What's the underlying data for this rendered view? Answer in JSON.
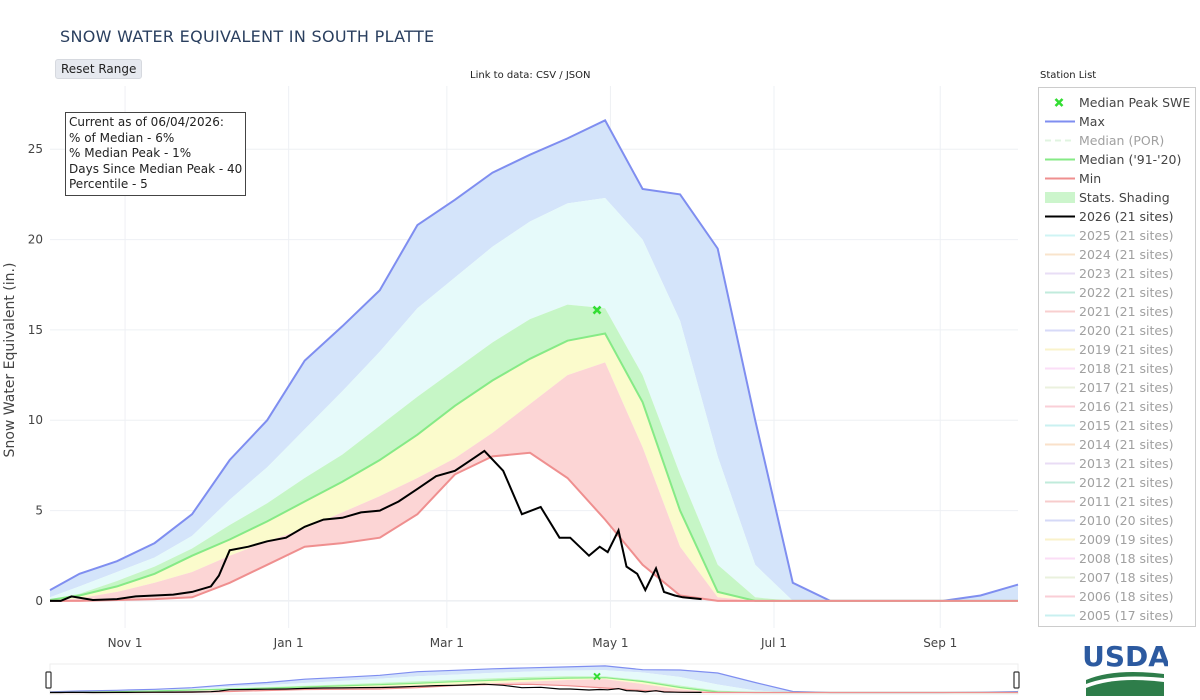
{
  "page": {
    "title": "SNOW WATER EQUIVALENT IN SOUTH PLATTE",
    "reset_button": "Reset Range",
    "data_link_prefix": "Link to data: ",
    "data_link_csv": "CSV",
    "data_link_sep": " / ",
    "data_link_json": "JSON",
    "station_list": "Station List",
    "usda_logo_text": "USDA"
  },
  "info_box": {
    "lines": [
      "Current as of 06/04/2026:",
      "% of Median - 6%",
      "% Median Peak - 1%",
      "Days Since Median Peak - 40",
      "Percentile - 5"
    ]
  },
  "legend": {
    "items": [
      {
        "label": "Median Peak SWE",
        "kind": "marker",
        "color": "#33dd33",
        "active": true
      },
      {
        "label": "Max",
        "kind": "line",
        "color": "#7f8ef0",
        "active": true
      },
      {
        "label": "Median (POR)",
        "kind": "dash",
        "color": "#c8ecc8",
        "active": false
      },
      {
        "label": "Median ('91-'20)",
        "kind": "line",
        "color": "#86ea86",
        "active": true
      },
      {
        "label": "Min",
        "kind": "line",
        "color": "#ef8f8f",
        "active": true
      },
      {
        "label": "Stats. Shading",
        "kind": "band",
        "color": "#ccf5cc",
        "active": true
      },
      {
        "label": "2026 (21 sites)",
        "kind": "line",
        "color": "#000000",
        "active": true
      },
      {
        "label": "2025 (21 sites)",
        "kind": "line",
        "color": "#a9ecec",
        "active": false
      },
      {
        "label": "2024 (21 sites)",
        "kind": "line",
        "color": "#f5cfa3",
        "active": false
      },
      {
        "label": "2023 (21 sites)",
        "kind": "line",
        "color": "#d6c4f0",
        "active": false
      },
      {
        "label": "2022 (21 sites)",
        "kind": "line",
        "color": "#8fdcc0",
        "active": false
      },
      {
        "label": "2021 (21 sites)",
        "kind": "line",
        "color": "#f3a8a8",
        "active": false
      },
      {
        "label": "2020 (21 sites)",
        "kind": "line",
        "color": "#b7bdf3",
        "active": false
      },
      {
        "label": "2019 (21 sites)",
        "kind": "line",
        "color": "#f7eaa2",
        "active": false
      },
      {
        "label": "2018 (21 sites)",
        "kind": "line",
        "color": "#f8c4f2",
        "active": false
      },
      {
        "label": "2017 (21 sites)",
        "kind": "line",
        "color": "#dbe7c4",
        "active": false
      },
      {
        "label": "2016 (21 sites)",
        "kind": "line",
        "color": "#f6a9b8",
        "active": false
      },
      {
        "label": "2015 (21 sites)",
        "kind": "line",
        "color": "#9fe6e6",
        "active": false
      },
      {
        "label": "2014 (21 sites)",
        "kind": "line",
        "color": "#f7c9a0",
        "active": false
      },
      {
        "label": "2013 (21 sites)",
        "kind": "line",
        "color": "#d8c0ee",
        "active": false
      },
      {
        "label": "2012 (21 sites)",
        "kind": "line",
        "color": "#8edcbf",
        "active": false
      },
      {
        "label": "2011 (21 sites)",
        "kind": "line",
        "color": "#f2a4a4",
        "active": false
      },
      {
        "label": "2010 (20 sites)",
        "kind": "line",
        "color": "#b4bbf2",
        "active": false
      },
      {
        "label": "2009 (19 sites)",
        "kind": "line",
        "color": "#f7e9a0",
        "active": false
      },
      {
        "label": "2008 (18 sites)",
        "kind": "line",
        "color": "#f8c2f0",
        "active": false
      },
      {
        "label": "2007 (18 sites)",
        "kind": "line",
        "color": "#dae7c3",
        "active": false
      },
      {
        "label": "2006 (18 sites)",
        "kind": "line",
        "color": "#f6a7b6",
        "active": false
      },
      {
        "label": "2005 (17 sites)",
        "kind": "line",
        "color": "#9ee5e5",
        "active": false
      }
    ]
  },
  "chart_data": {
    "type": "area",
    "title": "SNOW WATER EQUIVALENT IN SOUTH PLATTE",
    "ylabel": "Snow Water Equivalent (in.)",
    "xlabel": "",
    "ylim": [
      -1.5,
      28.5
    ],
    "xlim": [
      "2025-10-04",
      "2026-09-30"
    ],
    "yticks": [
      0,
      5,
      10,
      15,
      20,
      25
    ],
    "xticks": [
      {
        "date": "2025-11-01",
        "label": "Nov 1"
      },
      {
        "date": "2026-01-01",
        "label": "Jan 1"
      },
      {
        "date": "2026-03-01",
        "label": "Mar 1"
      },
      {
        "date": "2026-05-01",
        "label": "May 1"
      },
      {
        "date": "2026-07-01",
        "label": "Jul 1"
      },
      {
        "date": "2026-09-01",
        "label": "Sep 1"
      }
    ],
    "grid": true,
    "legend_position": "right",
    "colors": {
      "max": "#7f8ef0",
      "median_9120": "#86ea86",
      "min": "#ef8f8f",
      "current": "#000000",
      "band_max_p90": "#d4e4fa",
      "band_p90_p70": "#e6fafa",
      "band_p70_p50": "#c6f6c6",
      "band_p50_p30": "#fbfbcc",
      "band_p30_min": "#fcd5d5",
      "peak_marker": "#33dd33"
    },
    "median_peak": {
      "date": "2026-04-26",
      "value": 16.1
    },
    "dates": [
      "2025-10-04",
      "2025-10-15",
      "2025-10-29",
      "2025-11-12",
      "2025-11-26",
      "2025-12-10",
      "2025-12-24",
      "2026-01-07",
      "2026-01-21",
      "2026-02-04",
      "2026-02-18",
      "2026-03-04",
      "2026-03-18",
      "2026-04-01",
      "2026-04-15",
      "2026-04-29",
      "2026-05-13",
      "2026-05-27",
      "2026-06-10",
      "2026-06-24",
      "2026-07-08",
      "2026-07-22",
      "2026-08-05",
      "2026-08-19",
      "2026-09-02",
      "2026-09-16",
      "2026-09-30"
    ],
    "series": [
      {
        "name": "Max",
        "values": [
          0.6,
          1.5,
          2.2,
          3.2,
          4.8,
          7.8,
          10.0,
          13.3,
          15.2,
          17.2,
          20.8,
          22.2,
          23.7,
          24.7,
          25.6,
          26.6,
          22.8,
          22.5,
          19.5,
          10.0,
          1.0,
          0.0,
          0.0,
          0.0,
          0.0,
          0.3,
          0.9
        ]
      },
      {
        "name": "P90",
        "values": [
          0.2,
          0.8,
          1.6,
          2.4,
          3.6,
          5.6,
          7.4,
          9.5,
          11.6,
          13.8,
          16.2,
          17.9,
          19.6,
          21.0,
          22.0,
          22.3,
          20.0,
          15.5,
          8.0,
          2.0,
          0.0,
          0.0,
          0.0,
          0.0,
          0.0,
          0.0,
          0.0
        ]
      },
      {
        "name": "P70",
        "values": [
          0.1,
          0.4,
          1.1,
          1.9,
          2.9,
          4.2,
          5.4,
          6.8,
          8.1,
          9.7,
          11.3,
          12.8,
          14.3,
          15.6,
          16.4,
          16.2,
          12.5,
          7.0,
          2.0,
          0.2,
          0.0,
          0.0,
          0.0,
          0.0,
          0.0,
          0.0,
          0.0
        ]
      },
      {
        "name": "Median ('91-'20)",
        "values": [
          0.05,
          0.3,
          0.8,
          1.5,
          2.5,
          3.4,
          4.4,
          5.5,
          6.6,
          7.8,
          9.2,
          10.8,
          12.2,
          13.4,
          14.4,
          14.8,
          11.0,
          5.0,
          0.5,
          0.0,
          0.0,
          0.0,
          0.0,
          0.0,
          0.0,
          0.0,
          0.0
        ]
      },
      {
        "name": "P30",
        "values": [
          0.0,
          0.15,
          0.5,
          1.0,
          1.6,
          2.5,
          3.3,
          4.0,
          4.9,
          5.8,
          6.8,
          7.9,
          9.3,
          10.9,
          12.5,
          13.2,
          8.5,
          3.0,
          0.2,
          0.0,
          0.0,
          0.0,
          0.0,
          0.0,
          0.0,
          0.0,
          0.0
        ]
      },
      {
        "name": "Min",
        "values": [
          0.0,
          0.0,
          0.05,
          0.1,
          0.2,
          1.0,
          2.0,
          3.0,
          3.2,
          3.5,
          4.8,
          7.0,
          8.0,
          8.2,
          6.8,
          4.5,
          2.0,
          0.3,
          0.0,
          0.0,
          0.0,
          0.0,
          0.0,
          0.0,
          0.0,
          0.0,
          0.0
        ]
      }
    ],
    "current_year": {
      "name": "2026 (21 sites)",
      "dates": [
        "2025-10-04",
        "2025-10-08",
        "2025-10-12",
        "2025-10-20",
        "2025-10-29",
        "2025-11-05",
        "2025-11-12",
        "2025-11-19",
        "2025-11-26",
        "2025-12-03",
        "2025-12-06",
        "2025-12-10",
        "2025-12-17",
        "2025-12-24",
        "2025-12-31",
        "2026-01-07",
        "2026-01-14",
        "2026-01-21",
        "2026-01-28",
        "2026-02-04",
        "2026-02-11",
        "2026-02-18",
        "2026-02-25",
        "2026-03-04",
        "2026-03-11",
        "2026-03-15",
        "2026-03-22",
        "2026-03-29",
        "2026-04-05",
        "2026-04-12",
        "2026-04-16",
        "2026-04-23",
        "2026-04-27",
        "2026-04-30",
        "2026-05-04",
        "2026-05-07",
        "2026-05-11",
        "2026-05-14",
        "2026-05-18",
        "2026-05-21",
        "2026-05-25",
        "2026-05-28",
        "2026-06-04"
      ],
      "values": [
        0.0,
        0.0,
        0.25,
        0.05,
        0.1,
        0.25,
        0.3,
        0.35,
        0.5,
        0.8,
        1.4,
        2.8,
        3.0,
        3.3,
        3.5,
        4.1,
        4.5,
        4.6,
        4.9,
        5.0,
        5.5,
        6.2,
        6.9,
        7.2,
        7.9,
        8.3,
        7.2,
        4.8,
        5.2,
        3.5,
        3.5,
        2.5,
        3.0,
        2.7,
        3.9,
        1.9,
        1.5,
        0.6,
        1.8,
        0.5,
        0.3,
        0.2,
        0.1
      ]
    }
  }
}
